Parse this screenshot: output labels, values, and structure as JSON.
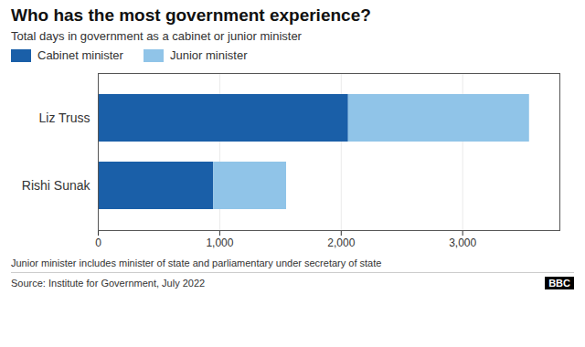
{
  "chart_data": {
    "type": "bar",
    "orientation": "horizontal",
    "stacked": true,
    "title": "Who has the most government experience?",
    "subtitle": "Total days in government as a cabinet or junior minister",
    "categories": [
      "Liz Truss",
      "Rishi Sunak"
    ],
    "series": [
      {
        "name": "Cabinet minister",
        "color": "#1a5fa8",
        "values": [
          2060,
          950
        ]
      },
      {
        "name": "Junior minister",
        "color": "#90c4e8",
        "values": [
          1490,
          600
        ]
      }
    ],
    "xlim": [
      0,
      3800
    ],
    "xticks": [
      0,
      {
        "value": 1000,
        "label": "1,000"
      },
      {
        "value": 2000,
        "label": "2,000"
      },
      {
        "value": 3000,
        "label": "3,000"
      }
    ],
    "grid": true,
    "legend": "top-left",
    "footnote": "Junior minister includes minister of state and parliamentary under secretary of state",
    "source": "Source: Institute for Government, July 2022",
    "annotations": [
      "BBC"
    ]
  }
}
